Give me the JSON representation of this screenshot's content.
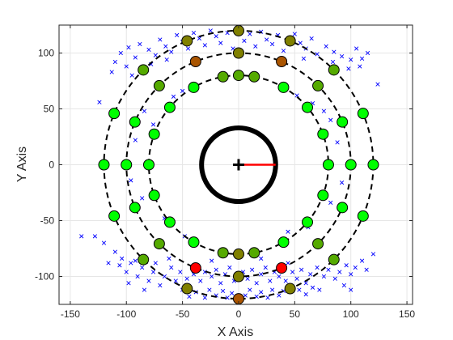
{
  "chart_data": {
    "type": "scatter",
    "xlabel": "X Axis",
    "ylabel": "Y Axis",
    "xlim": [
      -160,
      155
    ],
    "ylim": [
      -125,
      125
    ],
    "x_ticks": [
      -150,
      -100,
      -50,
      0,
      50,
      100,
      150
    ],
    "y_ticks": [
      -100,
      -50,
      0,
      50,
      100
    ],
    "x_tick_labels": [
      "-150",
      "-100",
      "-50",
      "0",
      "50",
      "100",
      "150"
    ],
    "y_tick_labels": [
      "-100",
      "-50",
      "0",
      "50",
      "100"
    ],
    "grid": true,
    "legend": "none",
    "colors": {
      "axes": "#262626",
      "grid": "#e6e6e6",
      "rings": "#000000",
      "robot_body": "#000000",
      "heading": "#ff0000",
      "measurements": "#0000ff",
      "marker_edge": "#000000"
    },
    "rings": [
      {
        "radius": 80,
        "style": "dashed"
      },
      {
        "radius": 100,
        "style": "dashed"
      },
      {
        "radius": 120,
        "style": "dashed"
      }
    ],
    "robot": {
      "x": 0,
      "y": 0,
      "radius": 33,
      "heading_deg": 0,
      "heading_length": 33
    },
    "landmark_colors": {
      "green": "#00ff00",
      "olive_green": "#55aa00",
      "olive": "#808000",
      "brown": "#aa5500",
      "red": "#ff0000"
    },
    "landmarks": [
      {
        "x": 80,
        "y": 0,
        "color": "green"
      },
      {
        "x": 75.2,
        "y": 27.4,
        "color": "green"
      },
      {
        "x": 61.3,
        "y": 51.4,
        "color": "green"
      },
      {
        "x": 40,
        "y": 69.3,
        "color": "green"
      },
      {
        "x": 13.9,
        "y": 78.8,
        "color": "olive_green"
      },
      {
        "x": -13.9,
        "y": 78.8,
        "color": "olive_green"
      },
      {
        "x": -40,
        "y": 69.3,
        "color": "green"
      },
      {
        "x": -61.3,
        "y": 51.4,
        "color": "green"
      },
      {
        "x": -75.2,
        "y": 27.4,
        "color": "green"
      },
      {
        "x": -80,
        "y": 0,
        "color": "green"
      },
      {
        "x": -75.2,
        "y": -27.4,
        "color": "green"
      },
      {
        "x": -61.3,
        "y": -51.4,
        "color": "green"
      },
      {
        "x": -40,
        "y": -69.3,
        "color": "green"
      },
      {
        "x": -13.9,
        "y": -78.8,
        "color": "olive_green"
      },
      {
        "x": 13.9,
        "y": -78.8,
        "color": "olive_green"
      },
      {
        "x": 40,
        "y": -69.3,
        "color": "green"
      },
      {
        "x": 61.3,
        "y": -51.4,
        "color": "green"
      },
      {
        "x": 75.2,
        "y": -27.4,
        "color": "green"
      },
      {
        "x": 0,
        "y": 80,
        "color": "olive_green"
      },
      {
        "x": 0,
        "y": -80,
        "color": "olive"
      },
      {
        "x": 100,
        "y": 0,
        "color": "green"
      },
      {
        "x": 92.4,
        "y": 38.3,
        "color": "green"
      },
      {
        "x": 70.7,
        "y": 70.7,
        "color": "olive_green"
      },
      {
        "x": 38.3,
        "y": 92.4,
        "color": "brown"
      },
      {
        "x": 0,
        "y": 100,
        "color": "olive"
      },
      {
        "x": -38.3,
        "y": 92.4,
        "color": "brown"
      },
      {
        "x": -70.7,
        "y": 70.7,
        "color": "olive_green"
      },
      {
        "x": -92.4,
        "y": 38.3,
        "color": "green"
      },
      {
        "x": -100,
        "y": 0,
        "color": "green"
      },
      {
        "x": -92.4,
        "y": -38.3,
        "color": "green"
      },
      {
        "x": -70.7,
        "y": -70.7,
        "color": "olive_green"
      },
      {
        "x": -38.3,
        "y": -92.4,
        "color": "red"
      },
      {
        "x": 0,
        "y": -100,
        "color": "olive"
      },
      {
        "x": 38.3,
        "y": -92.4,
        "color": "red"
      },
      {
        "x": 70.7,
        "y": -70.7,
        "color": "olive_green"
      },
      {
        "x": 92.4,
        "y": -38.3,
        "color": "green"
      },
      {
        "x": 120,
        "y": 0,
        "color": "green"
      },
      {
        "x": 110.9,
        "y": 45.9,
        "color": "green"
      },
      {
        "x": 84.9,
        "y": 84.9,
        "color": "olive_green"
      },
      {
        "x": 45.9,
        "y": 110.9,
        "color": "olive"
      },
      {
        "x": 0,
        "y": 120,
        "color": "olive"
      },
      {
        "x": -45.9,
        "y": 110.9,
        "color": "olive"
      },
      {
        "x": -84.9,
        "y": 84.9,
        "color": "olive_green"
      },
      {
        "x": -110.9,
        "y": 45.9,
        "color": "green"
      },
      {
        "x": -120,
        "y": 0,
        "color": "green"
      },
      {
        "x": -110.9,
        "y": -45.9,
        "color": "green"
      },
      {
        "x": -84.9,
        "y": -84.9,
        "color": "olive_green"
      },
      {
        "x": -45.9,
        "y": -110.9,
        "color": "olive"
      },
      {
        "x": 0,
        "y": -120,
        "color": "brown"
      },
      {
        "x": 45.9,
        "y": -110.9,
        "color": "olive"
      },
      {
        "x": 84.9,
        "y": -84.9,
        "color": "olive_green"
      },
      {
        "x": 110.9,
        "y": -45.9,
        "color": "green"
      }
    ],
    "measurements": [
      {
        "x": -105,
        "y": 100
      },
      {
        "x": -98,
        "y": 105
      },
      {
        "x": -92,
        "y": 96
      },
      {
        "x": -88,
        "y": 108
      },
      {
        "x": -80,
        "y": 103
      },
      {
        "x": -74,
        "y": 98
      },
      {
        "x": -70,
        "y": 112
      },
      {
        "x": -65,
        "y": 106
      },
      {
        "x": -60,
        "y": 101
      },
      {
        "x": -55,
        "y": 116
      },
      {
        "x": -50,
        "y": 110
      },
      {
        "x": -45,
        "y": 104
      },
      {
        "x": -40,
        "y": 118
      },
      {
        "x": -35,
        "y": 113
      },
      {
        "x": -30,
        "y": 107
      },
      {
        "x": -25,
        "y": 120
      },
      {
        "x": -20,
        "y": 115
      },
      {
        "x": -16,
        "y": 109
      },
      {
        "x": -10,
        "y": 118
      },
      {
        "x": -5,
        "y": 104
      },
      {
        "x": 5,
        "y": 111
      },
      {
        "x": 10,
        "y": 117
      },
      {
        "x": 15,
        "y": 106
      },
      {
        "x": 20,
        "y": 119
      },
      {
        "x": 25,
        "y": 112
      },
      {
        "x": 30,
        "y": 108
      },
      {
        "x": 35,
        "y": 116
      },
      {
        "x": 40,
        "y": 102
      },
      {
        "x": 50,
        "y": 117
      },
      {
        "x": 55,
        "y": 109
      },
      {
        "x": 60,
        "y": 104
      },
      {
        "x": 65,
        "y": 113
      },
      {
        "x": 70,
        "y": 99
      },
      {
        "x": 78,
        "y": 106
      },
      {
        "x": 85,
        "y": 101
      },
      {
        "x": 92,
        "y": 97
      },
      {
        "x": 100,
        "y": 94
      },
      {
        "x": 105,
        "y": 104
      },
      {
        "x": 110,
        "y": 95
      },
      {
        "x": 115,
        "y": 100
      },
      {
        "x": 108,
        "y": 88
      },
      {
        "x": 98,
        "y": 86
      },
      {
        "x": -110,
        "y": 92
      },
      {
        "x": -100,
        "y": 88
      },
      {
        "x": -95,
        "y": 80
      },
      {
        "x": -113,
        "y": 83
      },
      {
        "x": -64,
        "y": 94
      },
      {
        "x": 58,
        "y": 95
      },
      {
        "x": -78,
        "y": 90
      },
      {
        "x": 84,
        "y": 92
      },
      {
        "x": -58,
        "y": 61
      },
      {
        "x": -50,
        "y": 66
      },
      {
        "x": 52,
        "y": 62
      },
      {
        "x": 66,
        "y": 55
      },
      {
        "x": -84,
        "y": 48
      },
      {
        "x": -76,
        "y": 36
      },
      {
        "x": 82,
        "y": 40
      },
      {
        "x": 76,
        "y": 48
      },
      {
        "x": -92,
        "y": 22
      },
      {
        "x": 88,
        "y": 20
      },
      {
        "x": -96,
        "y": -14
      },
      {
        "x": 92,
        "y": -16
      },
      {
        "x": -86,
        "y": -30
      },
      {
        "x": 82,
        "y": -34
      },
      {
        "x": -66,
        "y": -48
      },
      {
        "x": 62,
        "y": -56
      },
      {
        "x": -48,
        "y": -64
      },
      {
        "x": 44,
        "y": -60
      },
      {
        "x": -128,
        "y": -64
      },
      {
        "x": -124,
        "y": 56
      },
      {
        "x": -110,
        "y": -78
      },
      {
        "x": -104,
        "y": -84
      },
      {
        "x": -100,
        "y": -96
      },
      {
        "x": -96,
        "y": -88
      },
      {
        "x": -90,
        "y": -100
      },
      {
        "x": -86,
        "y": -92
      },
      {
        "x": -80,
        "y": -104
      },
      {
        "x": -76,
        "y": -96
      },
      {
        "x": -70,
        "y": -108
      },
      {
        "x": -66,
        "y": -100
      },
      {
        "x": -60,
        "y": -92
      },
      {
        "x": -56,
        "y": -104
      },
      {
        "x": -52,
        "y": -96
      },
      {
        "x": -46,
        "y": -102
      },
      {
        "x": -40,
        "y": -98
      },
      {
        "x": -34,
        "y": -104
      },
      {
        "x": -30,
        "y": -96
      },
      {
        "x": -24,
        "y": -100
      },
      {
        "x": -20,
        "y": -94
      },
      {
        "x": -16,
        "y": -106
      },
      {
        "x": -12,
        "y": -98
      },
      {
        "x": -8,
        "y": -92
      },
      {
        "x": -4,
        "y": -104
      },
      {
        "x": 4,
        "y": -96
      },
      {
        "x": 8,
        "y": -102
      },
      {
        "x": 12,
        "y": -94
      },
      {
        "x": 16,
        "y": -106
      },
      {
        "x": 20,
        "y": -98
      },
      {
        "x": 24,
        "y": -92
      },
      {
        "x": 28,
        "y": -104
      },
      {
        "x": 32,
        "y": -96
      },
      {
        "x": 36,
        "y": -100
      },
      {
        "x": 42,
        "y": -104
      },
      {
        "x": 48,
        "y": -96
      },
      {
        "x": 52,
        "y": -102
      },
      {
        "x": 56,
        "y": -94
      },
      {
        "x": 60,
        "y": -106
      },
      {
        "x": 64,
        "y": -98
      },
      {
        "x": 70,
        "y": -92
      },
      {
        "x": 76,
        "y": -100
      },
      {
        "x": 80,
        "y": -94
      },
      {
        "x": 86,
        "y": -102
      },
      {
        "x": 90,
        "y": -96
      },
      {
        "x": 96,
        "y": -90
      },
      {
        "x": 100,
        "y": -98
      },
      {
        "x": 104,
        "y": -92
      },
      {
        "x": 110,
        "y": -86
      },
      {
        "x": 114,
        "y": -94
      },
      {
        "x": 94,
        "y": -108
      },
      {
        "x": -92,
        "y": -86
      },
      {
        "x": -116,
        "y": -88
      },
      {
        "x": -106,
        "y": -90
      },
      {
        "x": -84,
        "y": -112
      },
      {
        "x": -74,
        "y": -88
      },
      {
        "x": -50,
        "y": -112
      },
      {
        "x": -44,
        "y": -118
      },
      {
        "x": -38,
        "y": -114
      },
      {
        "x": -30,
        "y": -119
      },
      {
        "x": -26,
        "y": -112
      },
      {
        "x": -20,
        "y": -117
      },
      {
        "x": -14,
        "y": -113
      },
      {
        "x": -10,
        "y": -119
      },
      {
        "x": -6,
        "y": -115
      },
      {
        "x": 6,
        "y": -117
      },
      {
        "x": 10,
        "y": -112
      },
      {
        "x": 16,
        "y": -118
      },
      {
        "x": 20,
        "y": -114
      },
      {
        "x": 26,
        "y": -119
      },
      {
        "x": 30,
        "y": -112
      },
      {
        "x": 36,
        "y": -117
      },
      {
        "x": 40,
        "y": -113
      },
      {
        "x": 54,
        "y": -112
      },
      {
        "x": 60,
        "y": -116
      },
      {
        "x": 66,
        "y": -110
      },
      {
        "x": 72,
        "y": -112
      },
      {
        "x": 44,
        "y": -88
      },
      {
        "x": -62,
        "y": -84
      },
      {
        "x": 20,
        "y": -84
      },
      {
        "x": -24,
        "y": -86
      },
      {
        "x": 100,
        "y": -112
      },
      {
        "x": -98,
        "y": -106
      },
      {
        "x": 120,
        "y": -80
      },
      {
        "x": -120,
        "y": -70
      },
      {
        "x": -140,
        "y": -64
      },
      {
        "x": 124,
        "y": 72
      }
    ]
  }
}
